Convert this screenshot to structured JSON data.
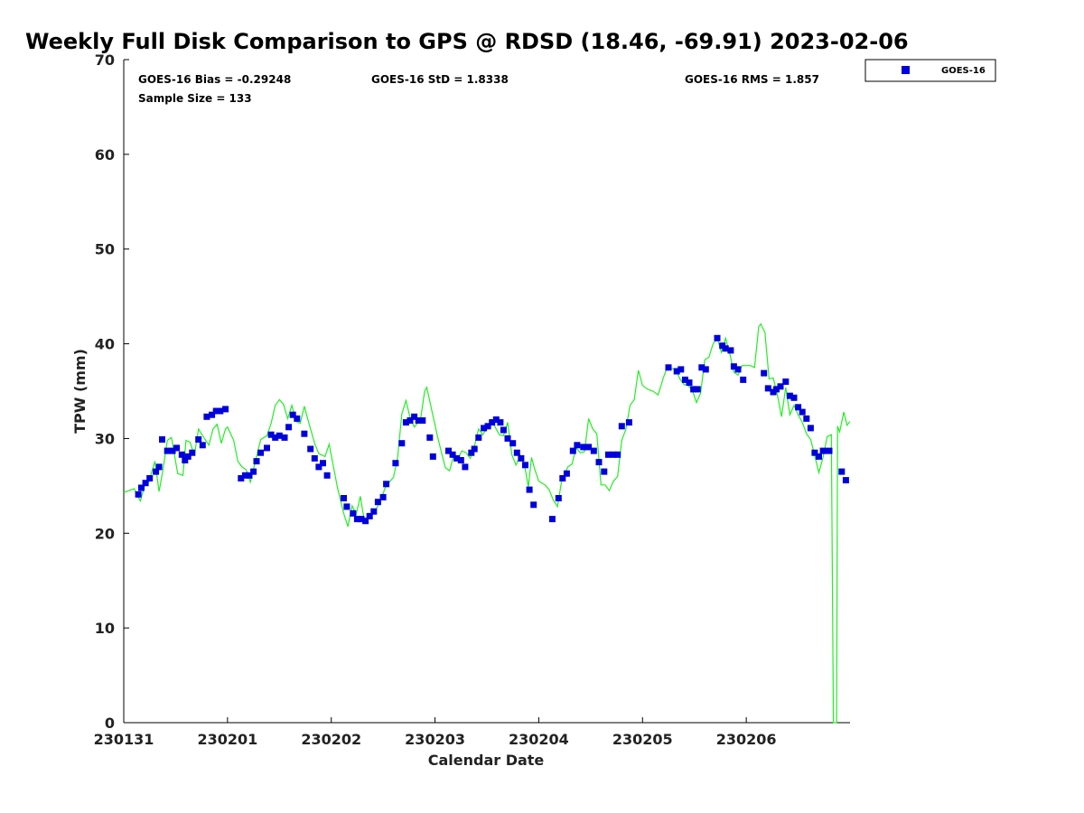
{
  "chart_data": {
    "type": "scatter",
    "title": "Weekly Full Disk Comparison to GPS @ RDSD (18.46, -69.91) 2023-02-06",
    "xlabel": "Calendar Date",
    "ylabel": "TPW (mm)",
    "ylim": [
      0,
      70
    ],
    "xlim": [
      0,
      7
    ],
    "x_ticks": [
      {
        "x": 0,
        "label": "230131"
      },
      {
        "x": 1,
        "label": "230201"
      },
      {
        "x": 2,
        "label": "230202"
      },
      {
        "x": 3,
        "label": "230203"
      },
      {
        "x": 4,
        "label": "230204"
      },
      {
        "x": 5,
        "label": "230205"
      },
      {
        "x": 6,
        "label": "230206"
      }
    ],
    "y_ticks": [
      0,
      10,
      20,
      30,
      40,
      50,
      60,
      70
    ],
    "grid": false,
    "legend": {
      "placement": "top-right outside",
      "entries": [
        "GOES-16"
      ]
    },
    "stats": [
      "GOES-16 Bias = -0.29248",
      "GOES-16 StD = 1.8338",
      "GOES-16 RMS = 1.857",
      "Sample Size = 133"
    ],
    "series": [
      {
        "name": "GOES-16",
        "marker": "square",
        "color": "#0000dd",
        "points": [
          [
            0.14,
            24.1
          ],
          [
            0.17,
            24.8
          ],
          [
            0.21,
            25.3
          ],
          [
            0.25,
            25.8
          ],
          [
            0.31,
            26.5
          ],
          [
            0.34,
            27.0
          ],
          [
            0.37,
            29.9
          ],
          [
            0.42,
            28.7
          ],
          [
            0.47,
            28.7
          ],
          [
            0.51,
            29.0
          ],
          [
            0.56,
            28.3
          ],
          [
            0.59,
            27.7
          ],
          [
            0.62,
            28.1
          ],
          [
            0.66,
            28.5
          ],
          [
            0.72,
            29.9
          ],
          [
            0.76,
            29.3
          ],
          [
            0.8,
            32.3
          ],
          [
            0.85,
            32.5
          ],
          [
            0.89,
            32.9
          ],
          [
            0.93,
            32.9
          ],
          [
            0.98,
            33.1
          ],
          [
            1.13,
            25.8
          ],
          [
            1.17,
            26.1
          ],
          [
            1.21,
            26.1
          ],
          [
            1.25,
            26.5
          ],
          [
            1.28,
            27.6
          ],
          [
            1.32,
            28.5
          ],
          [
            1.38,
            29.0
          ],
          [
            1.42,
            30.4
          ],
          [
            1.46,
            30.1
          ],
          [
            1.5,
            30.3
          ],
          [
            1.55,
            30.1
          ],
          [
            1.59,
            31.2
          ],
          [
            1.63,
            32.5
          ],
          [
            1.67,
            32.1
          ],
          [
            1.74,
            30.5
          ],
          [
            1.8,
            28.9
          ],
          [
            1.84,
            27.9
          ],
          [
            1.88,
            27.0
          ],
          [
            1.92,
            27.4
          ],
          [
            1.96,
            26.1
          ],
          [
            2.12,
            23.7
          ],
          [
            2.15,
            22.8
          ],
          [
            2.21,
            22.1
          ],
          [
            2.25,
            21.5
          ],
          [
            2.29,
            21.5
          ],
          [
            2.33,
            21.3
          ],
          [
            2.37,
            21.8
          ],
          [
            2.41,
            22.3
          ],
          [
            2.45,
            23.3
          ],
          [
            2.5,
            23.8
          ],
          [
            2.53,
            25.2
          ],
          [
            2.62,
            27.4
          ],
          [
            2.68,
            29.5
          ],
          [
            2.72,
            31.7
          ],
          [
            2.76,
            31.9
          ],
          [
            2.8,
            32.3
          ],
          [
            2.84,
            31.9
          ],
          [
            2.88,
            31.9
          ],
          [
            2.95,
            30.1
          ],
          [
            2.98,
            28.1
          ],
          [
            3.13,
            28.7
          ],
          [
            3.17,
            28.3
          ],
          [
            3.21,
            27.9
          ],
          [
            3.25,
            27.7
          ],
          [
            3.29,
            27.0
          ],
          [
            3.35,
            28.5
          ],
          [
            3.38,
            28.9
          ],
          [
            3.42,
            30.1
          ],
          [
            3.47,
            31.1
          ],
          [
            3.51,
            31.3
          ],
          [
            3.55,
            31.7
          ],
          [
            3.59,
            32.0
          ],
          [
            3.63,
            31.7
          ],
          [
            3.66,
            30.9
          ],
          [
            3.7,
            30.0
          ],
          [
            3.75,
            29.5
          ],
          [
            3.79,
            28.5
          ],
          [
            3.83,
            27.9
          ],
          [
            3.87,
            27.2
          ],
          [
            3.91,
            24.6
          ],
          [
            3.95,
            23.0
          ],
          [
            4.13,
            21.5
          ],
          [
            4.19,
            23.7
          ],
          [
            4.23,
            25.8
          ],
          [
            4.27,
            26.3
          ],
          [
            4.33,
            28.7
          ],
          [
            4.37,
            29.3
          ],
          [
            4.43,
            29.1
          ],
          [
            4.48,
            29.1
          ],
          [
            4.53,
            28.7
          ],
          [
            4.58,
            27.5
          ],
          [
            4.63,
            26.5
          ],
          [
            4.67,
            28.3
          ],
          [
            4.72,
            28.3
          ],
          [
            4.76,
            28.3
          ],
          [
            4.8,
            31.3
          ],
          [
            4.87,
            31.7
          ],
          [
            5.25,
            37.5
          ],
          [
            5.33,
            37.1
          ],
          [
            5.37,
            37.3
          ],
          [
            5.41,
            36.2
          ],
          [
            5.45,
            35.9
          ],
          [
            5.49,
            35.2
          ],
          [
            5.53,
            35.2
          ],
          [
            5.57,
            37.5
          ],
          [
            5.61,
            37.3
          ],
          [
            5.72,
            40.6
          ],
          [
            5.77,
            39.8
          ],
          [
            5.8,
            39.5
          ],
          [
            5.85,
            39.3
          ],
          [
            5.88,
            37.6
          ],
          [
            5.92,
            37.3
          ],
          [
            5.97,
            36.2
          ],
          [
            6.17,
            36.9
          ],
          [
            6.21,
            35.3
          ],
          [
            6.26,
            34.9
          ],
          [
            6.29,
            35.2
          ],
          [
            6.33,
            35.5
          ],
          [
            6.38,
            36.0
          ],
          [
            6.42,
            34.5
          ],
          [
            6.46,
            34.3
          ],
          [
            6.5,
            33.3
          ],
          [
            6.54,
            32.8
          ],
          [
            6.58,
            32.1
          ],
          [
            6.62,
            31.1
          ],
          [
            6.66,
            28.5
          ],
          [
            6.7,
            28.1
          ],
          [
            6.74,
            28.7
          ],
          [
            6.8,
            28.7
          ],
          [
            6.92,
            26.5
          ],
          [
            6.96,
            25.6
          ]
        ]
      },
      {
        "marker": "line",
        "color": "#22ee22",
        "points": [
          [
            0.0,
            24.3
          ],
          [
            0.1,
            24.7
          ],
          [
            0.13,
            24.0
          ],
          [
            0.16,
            23.4
          ],
          [
            0.2,
            25.0
          ],
          [
            0.24,
            25.4
          ],
          [
            0.3,
            27.6
          ],
          [
            0.34,
            24.4
          ],
          [
            0.38,
            26.8
          ],
          [
            0.42,
            29.8
          ],
          [
            0.46,
            30.1
          ],
          [
            0.52,
            26.3
          ],
          [
            0.57,
            26.1
          ],
          [
            0.6,
            29.8
          ],
          [
            0.64,
            29.6
          ],
          [
            0.68,
            28.2
          ],
          [
            0.72,
            31.0
          ],
          [
            0.76,
            30.3
          ],
          [
            0.82,
            29.3
          ],
          [
            0.86,
            31.0
          ],
          [
            0.9,
            31.5
          ],
          [
            0.94,
            29.5
          ],
          [
            0.98,
            31.0
          ],
          [
            1.0,
            31.2
          ],
          [
            1.06,
            29.8
          ],
          [
            1.1,
            27.6
          ],
          [
            1.14,
            27.0
          ],
          [
            1.18,
            26.7
          ],
          [
            1.22,
            25.4
          ],
          [
            1.26,
            27.2
          ],
          [
            1.32,
            29.9
          ],
          [
            1.38,
            30.3
          ],
          [
            1.42,
            31.6
          ],
          [
            1.46,
            33.5
          ],
          [
            1.5,
            34.1
          ],
          [
            1.54,
            33.6
          ],
          [
            1.58,
            32.1
          ],
          [
            1.62,
            33.5
          ],
          [
            1.66,
            31.8
          ],
          [
            1.7,
            31.6
          ],
          [
            1.74,
            33.4
          ],
          [
            1.78,
            31.8
          ],
          [
            1.84,
            29.5
          ],
          [
            1.88,
            28.4
          ],
          [
            1.94,
            28.1
          ],
          [
            1.98,
            29.4
          ],
          [
            2.02,
            27.1
          ],
          [
            2.06,
            24.8
          ],
          [
            2.12,
            22.1
          ],
          [
            2.16,
            20.7
          ],
          [
            2.2,
            22.9
          ],
          [
            2.24,
            22.0
          ],
          [
            2.28,
            23.9
          ],
          [
            2.32,
            21.2
          ],
          [
            2.36,
            22.1
          ],
          [
            2.4,
            22.0
          ],
          [
            2.44,
            22.7
          ],
          [
            2.48,
            23.6
          ],
          [
            2.52,
            24.8
          ],
          [
            2.56,
            25.4
          ],
          [
            2.6,
            25.9
          ],
          [
            2.64,
            28.0
          ],
          [
            2.68,
            32.6
          ],
          [
            2.72,
            34.0
          ],
          [
            2.76,
            32.2
          ],
          [
            2.8,
            31.2
          ],
          [
            2.86,
            32.0
          ],
          [
            2.9,
            35.0
          ],
          [
            2.92,
            35.4
          ],
          [
            2.96,
            33.4
          ],
          [
            3.02,
            30.4
          ],
          [
            3.06,
            28.6
          ],
          [
            3.1,
            26.9
          ],
          [
            3.14,
            26.6
          ],
          [
            3.18,
            28.2
          ],
          [
            3.22,
            27.9
          ],
          [
            3.26,
            28.7
          ],
          [
            3.3,
            28.5
          ],
          [
            3.34,
            27.9
          ],
          [
            3.38,
            29.2
          ],
          [
            3.42,
            31.0
          ],
          [
            3.46,
            30.4
          ],
          [
            3.5,
            31.1
          ],
          [
            3.54,
            32.0
          ],
          [
            3.58,
            31.2
          ],
          [
            3.62,
            30.4
          ],
          [
            3.66,
            30.3
          ],
          [
            3.7,
            31.7
          ],
          [
            3.74,
            28.3
          ],
          [
            3.78,
            27.2
          ],
          [
            3.82,
            28.2
          ],
          [
            3.86,
            27.4
          ],
          [
            3.9,
            24.9
          ],
          [
            3.93,
            28.0
          ],
          [
            3.96,
            26.8
          ],
          [
            4.0,
            25.5
          ],
          [
            4.06,
            25.1
          ],
          [
            4.1,
            24.6
          ],
          [
            4.14,
            23.5
          ],
          [
            4.18,
            22.8
          ],
          [
            4.22,
            25.5
          ],
          [
            4.28,
            27.0
          ],
          [
            4.32,
            27.3
          ],
          [
            4.36,
            29.0
          ],
          [
            4.4,
            28.5
          ],
          [
            4.44,
            28.6
          ],
          [
            4.48,
            32.1
          ],
          [
            4.52,
            31.0
          ],
          [
            4.56,
            30.5
          ],
          [
            4.6,
            25.1
          ],
          [
            4.64,
            25.1
          ],
          [
            4.68,
            24.5
          ],
          [
            4.72,
            25.5
          ],
          [
            4.76,
            26.0
          ],
          [
            4.8,
            29.8
          ],
          [
            4.84,
            31.0
          ],
          [
            4.88,
            33.5
          ],
          [
            4.92,
            34.1
          ],
          [
            4.96,
            37.2
          ],
          [
            5.0,
            35.6
          ],
          [
            5.05,
            35.2
          ],
          [
            5.1,
            35.0
          ],
          [
            5.15,
            34.6
          ],
          [
            5.2,
            36.4
          ],
          [
            5.24,
            37.6
          ],
          [
            5.28,
            37.4
          ],
          [
            5.32,
            37.3
          ],
          [
            5.36,
            36.3
          ],
          [
            5.4,
            35.7
          ],
          [
            5.44,
            35.6
          ],
          [
            5.48,
            35.1
          ],
          [
            5.52,
            33.8
          ],
          [
            5.56,
            34.8
          ],
          [
            5.6,
            38.3
          ],
          [
            5.64,
            38.6
          ],
          [
            5.68,
            40.0
          ],
          [
            5.72,
            40.6
          ],
          [
            5.76,
            39.1
          ],
          [
            5.8,
            40.6
          ],
          [
            5.84,
            39.0
          ],
          [
            5.88,
            37.0
          ],
          [
            5.92,
            36.7
          ],
          [
            5.96,
            37.7
          ],
          [
            6.0,
            37.7
          ],
          [
            6.04,
            37.7
          ],
          [
            6.08,
            37.5
          ],
          [
            6.12,
            41.8
          ],
          [
            6.14,
            42.1
          ],
          [
            6.18,
            41.2
          ],
          [
            6.22,
            36.3
          ],
          [
            6.26,
            36.4
          ],
          [
            6.3,
            34.6
          ],
          [
            6.34,
            32.3
          ],
          [
            6.38,
            35.4
          ],
          [
            6.42,
            32.5
          ],
          [
            6.46,
            33.5
          ],
          [
            6.5,
            32.5
          ],
          [
            6.54,
            31.7
          ],
          [
            6.58,
            30.5
          ],
          [
            6.62,
            29.9
          ],
          [
            6.66,
            28.2
          ],
          [
            6.7,
            26.4
          ],
          [
            6.74,
            28.0
          ],
          [
            6.78,
            30.2
          ],
          [
            6.82,
            30.4
          ],
          [
            6.84,
            0.0
          ],
          [
            6.87,
            0.0
          ],
          [
            6.88,
            31.3
          ],
          [
            6.9,
            30.7
          ],
          [
            6.94,
            32.8
          ],
          [
            6.97,
            31.4
          ],
          [
            7.0,
            31.8
          ]
        ]
      }
    ]
  }
}
